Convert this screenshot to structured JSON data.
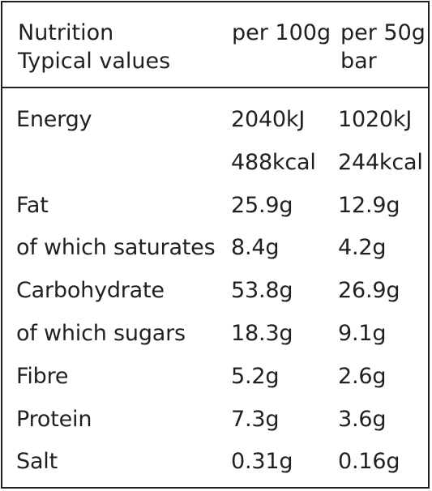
{
  "header": {
    "label_line1": "Nutrition",
    "label_line2": "Typical values",
    "col1_line1": "per 100g",
    "col2_line1": "per 50g",
    "col2_line2": "bar"
  },
  "rows": [
    {
      "label": "Energy",
      "per100": "2040kJ",
      "perbar": "1020kJ"
    },
    {
      "label": "",
      "per100": "488kcal",
      "perbar": "244kcal"
    },
    {
      "label": "Fat",
      "per100": "25.9g",
      "perbar": "12.9g"
    },
    {
      "label": "of which saturates",
      "per100": "8.4g",
      "perbar": "4.2g"
    },
    {
      "label": "Carbohydrate",
      "per100": "53.8g",
      "perbar": "26.9g"
    },
    {
      "label": "of which sugars",
      "per100": "18.3g",
      "perbar": "9.1g"
    },
    {
      "label": "Fibre",
      "per100": "5.2g",
      "perbar": "2.6g"
    },
    {
      "label": "Protein",
      "per100": "7.3g",
      "perbar": "3.6g"
    },
    {
      "label": "Salt",
      "per100": "0.31g",
      "perbar": "0.16g"
    }
  ],
  "colors": {
    "text": "#231f20",
    "border": "#231f20",
    "background": "#ffffff"
  }
}
